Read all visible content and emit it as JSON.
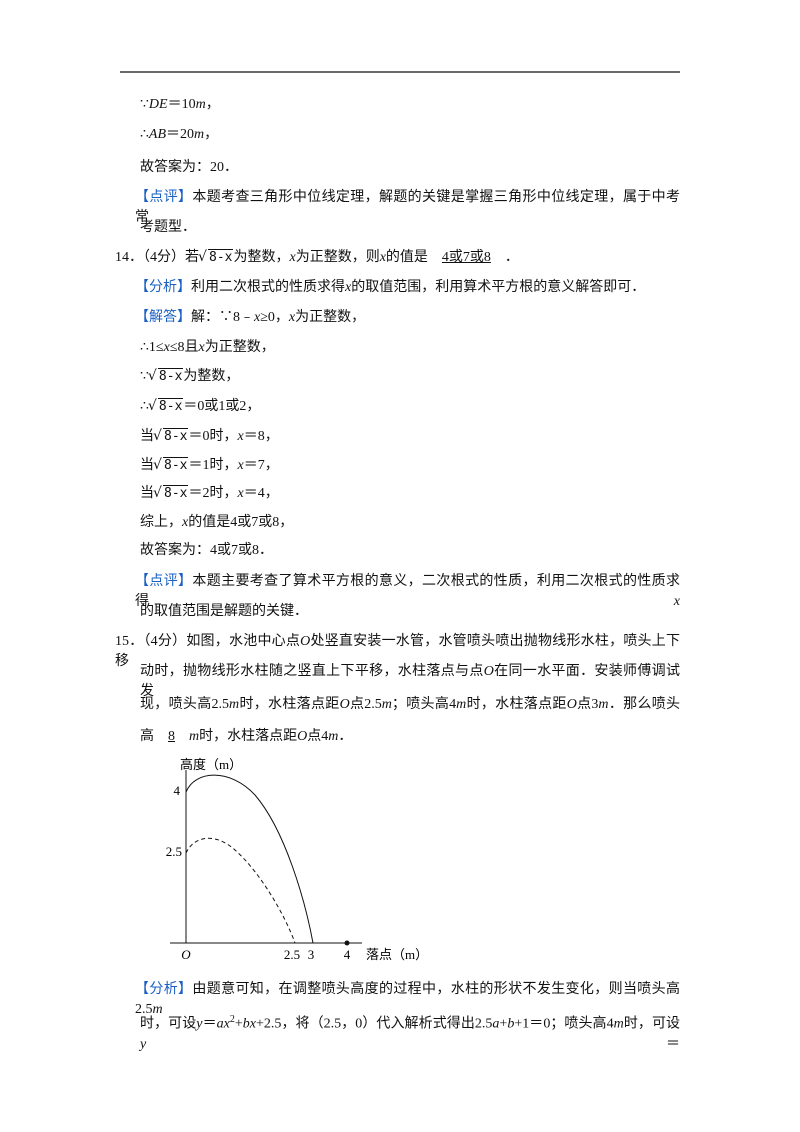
{
  "lines": [
    [
      "∵",
      "DE",
      "＝10",
      "m",
      "，"
    ],
    [
      "∴",
      "AB",
      "＝20",
      "m",
      "，"
    ],
    [
      "故答案为：20．"
    ],
    [
      "【点评】",
      "本题考查三角形中位线定理，解题的关键是掌握三角形中位线定理，属于中考常"
    ],
    [
      "考题型．"
    ],
    [
      "14．（4分）若",
      "8-x",
      "为整数，",
      "x",
      "为正整数，则",
      "x",
      "的值是",
      "4或7或8",
      "．"
    ],
    [
      "【分析】",
      "利用二次根式的性质求得",
      "x",
      "的取值范围，利用算术平方根的意义解答即可．"
    ],
    [
      "【解答】",
      "解：∵8﹣",
      "x",
      "≥0，",
      "x",
      "为正整数，"
    ],
    [
      "∴1≤",
      "x",
      "≤8且",
      "x",
      "为正整数，"
    ],
    [
      "∵",
      "8-x",
      "为整数，"
    ],
    [
      "∴",
      "8-x",
      "＝0或1或2，"
    ],
    [
      "当",
      "8-x",
      "＝0时，",
      "x",
      "＝8，"
    ],
    [
      "当",
      "8-x",
      "＝1时，",
      "x",
      "＝7，"
    ],
    [
      "当",
      "8-x",
      "＝2时，",
      "x",
      "＝4，"
    ],
    [
      "综上，",
      "x",
      "的值是4或7或8，"
    ],
    [
      "故答案为：4或7或8．"
    ],
    [
      "【点评】",
      "本题主要考查了算术平方根的意义，二次根式的性质，利用二次根式的性质求得",
      "x"
    ],
    [
      "的取值范围是解题的关键．"
    ],
    [
      "15．（4分）如图，水池中心点",
      "O",
      "处竖直安装一水管，水管喷头喷出抛物线形水柱，喷头上下移"
    ],
    [
      "动时，抛物线形水柱随之竖直上下平移，水柱落点与点",
      "O",
      "在同一水平面．安装师傅调试发"
    ],
    [
      "现，喷头高2.5",
      "m",
      "时，水柱落点距",
      "O",
      "点2.5",
      "m",
      "；喷头高4",
      "m",
      "时，水柱落点距",
      "O",
      "点3",
      "m",
      "．那么喷头"
    ],
    [
      "高",
      "8",
      "m",
      "时，水柱落点距",
      "O",
      "点4",
      "m",
      "．"
    ],
    [
      "【分析】",
      "由题意可知，在调整喷头高度的过程中，水柱的形状不发生变化，则当喷头高2.5",
      "m"
    ],
    [
      "时，可设",
      "y",
      "＝",
      "ax",
      "2",
      "+",
      "bx",
      "+2.5，将（2.5，0）代入解析式得出2.5",
      "a",
      "+",
      "b",
      "+1＝0；喷头高4",
      "m",
      "时，可设",
      "y",
      "＝"
    ]
  ],
  "figure": {
    "y_axis_label": "高度（m）",
    "x_axis_label": "落点（m）",
    "y_labels": [
      "4",
      "2.5"
    ],
    "origin": "O",
    "x_labels": [
      "2.5",
      "3",
      "4"
    ]
  }
}
